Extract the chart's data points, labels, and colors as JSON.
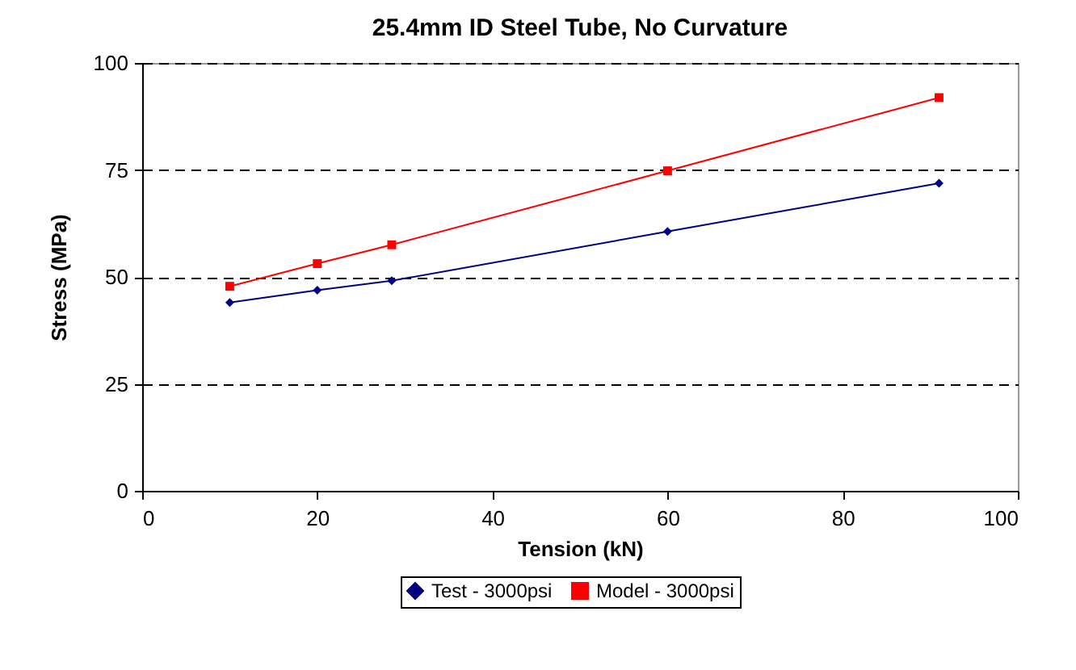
{
  "chart_data": {
    "type": "line",
    "title": "25.4mm ID Steel Tube, No Curvature",
    "xlabel": "Tension (kN)",
    "ylabel": "Stress (MPa)",
    "x": [
      10,
      20,
      28.5,
      60,
      91
    ],
    "series": [
      {
        "name": "Test - 3000psi",
        "color": "#000080",
        "marker": "diamond",
        "values": [
          44.0,
          46.9,
          49.1,
          60.6,
          71.9
        ]
      },
      {
        "name": "Model - 3000psi",
        "color": "#ff0000",
        "marker": "square",
        "values": [
          47.8,
          53.1,
          57.5,
          74.8,
          91.9
        ]
      }
    ],
    "xlim": [
      0,
      100
    ],
    "xticks": [
      0,
      20,
      40,
      60,
      80,
      100
    ],
    "ylim": [
      0,
      100
    ],
    "yticks": [
      0,
      25,
      50,
      75,
      100
    ],
    "grid": "y",
    "legend": "bottom",
    "line_style": "solid"
  }
}
